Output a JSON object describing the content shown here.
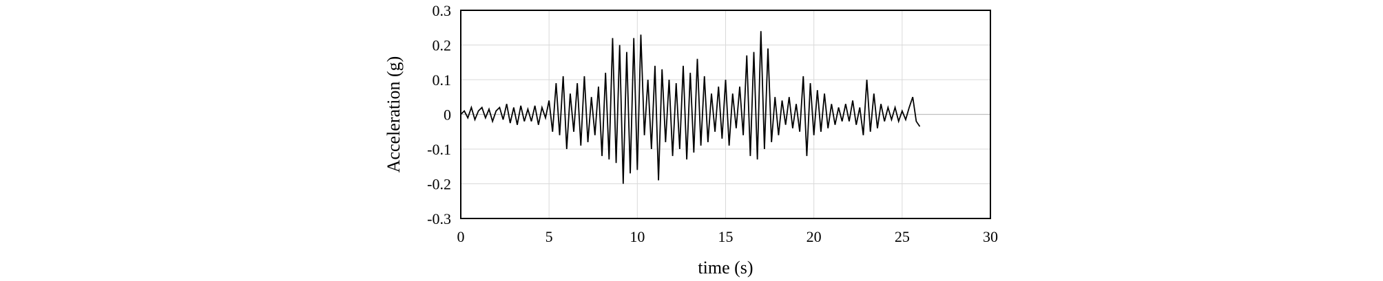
{
  "chart_data": {
    "type": "line",
    "title": "",
    "xlabel": "time (s)",
    "ylabel": "Acceleration (g)",
    "xlim": [
      0,
      30
    ],
    "ylim": [
      -0.3,
      0.3
    ],
    "xticks": [
      0,
      5,
      10,
      15,
      20,
      25,
      30
    ],
    "yticks": [
      -0.3,
      -0.2,
      -0.1,
      0,
      0.1,
      0.2,
      0.3
    ],
    "xtick_labels": [
      "0",
      "5",
      "10",
      "15",
      "20",
      "25",
      "30"
    ],
    "ytick_labels": [
      "-0.3",
      "-0.2",
      "-0.1",
      "0",
      "0.1",
      "0.2",
      "0.3"
    ],
    "grid": true,
    "legend": "none",
    "line_color": "#000000",
    "grid_color": "#d9d9d9",
    "series": [
      {
        "x": [
          0.0,
          0.2,
          0.4,
          0.6,
          0.8,
          1.0,
          1.2,
          1.4,
          1.6,
          1.8,
          2.0,
          2.2,
          2.4,
          2.6,
          2.8,
          3.0,
          3.2,
          3.4,
          3.6,
          3.8,
          4.0,
          4.2,
          4.4,
          4.6,
          4.8,
          5.0,
          5.2,
          5.4,
          5.6,
          5.8,
          6.0,
          6.2,
          6.4,
          6.6,
          6.8,
          7.0,
          7.2,
          7.4,
          7.6,
          7.8,
          8.0,
          8.2,
          8.4,
          8.6,
          8.8,
          9.0,
          9.2,
          9.4,
          9.6,
          9.8,
          10.0,
          10.2,
          10.4,
          10.6,
          10.8,
          11.0,
          11.2,
          11.4,
          11.6,
          11.8,
          12.0,
          12.2,
          12.4,
          12.6,
          12.8,
          13.0,
          13.2,
          13.4,
          13.6,
          13.8,
          14.0,
          14.2,
          14.4,
          14.6,
          14.8,
          15.0,
          15.2,
          15.4,
          15.6,
          15.8,
          16.0,
          16.2,
          16.4,
          16.6,
          16.8,
          17.0,
          17.2,
          17.4,
          17.6,
          17.8,
          18.0,
          18.2,
          18.4,
          18.6,
          18.8,
          19.0,
          19.2,
          19.4,
          19.6,
          19.8,
          20.0,
          20.2,
          20.4,
          20.6,
          20.8,
          21.0,
          21.2,
          21.4,
          21.6,
          21.8,
          22.0,
          22.2,
          22.4,
          22.6,
          22.8,
          23.0,
          23.2,
          23.4,
          23.6,
          23.8,
          24.0,
          24.2,
          24.4,
          24.6,
          24.8,
          25.0,
          25.2,
          25.4,
          25.6,
          25.8,
          26.0
        ],
        "y": [
          0.0,
          0.01,
          -0.01,
          0.02,
          -0.015,
          0.01,
          0.02,
          -0.01,
          0.015,
          -0.02,
          0.01,
          0.02,
          -0.015,
          0.03,
          -0.025,
          0.02,
          -0.03,
          0.025,
          -0.02,
          0.015,
          -0.02,
          0.025,
          -0.03,
          0.02,
          -0.01,
          0.04,
          -0.05,
          0.09,
          -0.06,
          0.11,
          -0.1,
          0.06,
          -0.05,
          0.09,
          -0.09,
          0.11,
          -0.08,
          0.05,
          -0.06,
          0.08,
          -0.12,
          0.12,
          -0.13,
          0.22,
          -0.14,
          0.2,
          -0.2,
          0.18,
          -0.17,
          0.22,
          -0.16,
          0.23,
          -0.06,
          0.1,
          -0.1,
          0.14,
          -0.19,
          0.13,
          -0.08,
          0.1,
          -0.12,
          0.09,
          -0.1,
          0.14,
          -0.13,
          0.12,
          -0.11,
          0.16,
          -0.09,
          0.11,
          -0.08,
          0.06,
          -0.05,
          0.08,
          -0.07,
          0.1,
          -0.09,
          0.06,
          -0.04,
          0.08,
          -0.06,
          0.17,
          -0.12,
          0.18,
          -0.13,
          0.24,
          -0.1,
          0.19,
          -0.08,
          0.05,
          -0.06,
          0.04,
          -0.03,
          0.05,
          -0.04,
          0.03,
          -0.05,
          0.11,
          -0.12,
          0.09,
          -0.06,
          0.07,
          -0.05,
          0.06,
          -0.04,
          0.03,
          -0.03,
          0.02,
          -0.02,
          0.03,
          -0.02,
          0.04,
          -0.03,
          0.02,
          -0.06,
          0.1,
          -0.05,
          0.06,
          -0.04,
          0.03,
          -0.02,
          0.02,
          -0.015,
          0.02,
          -0.02,
          0.01,
          -0.015,
          0.02,
          0.05,
          -0.02,
          -0.035
        ]
      }
    ]
  }
}
